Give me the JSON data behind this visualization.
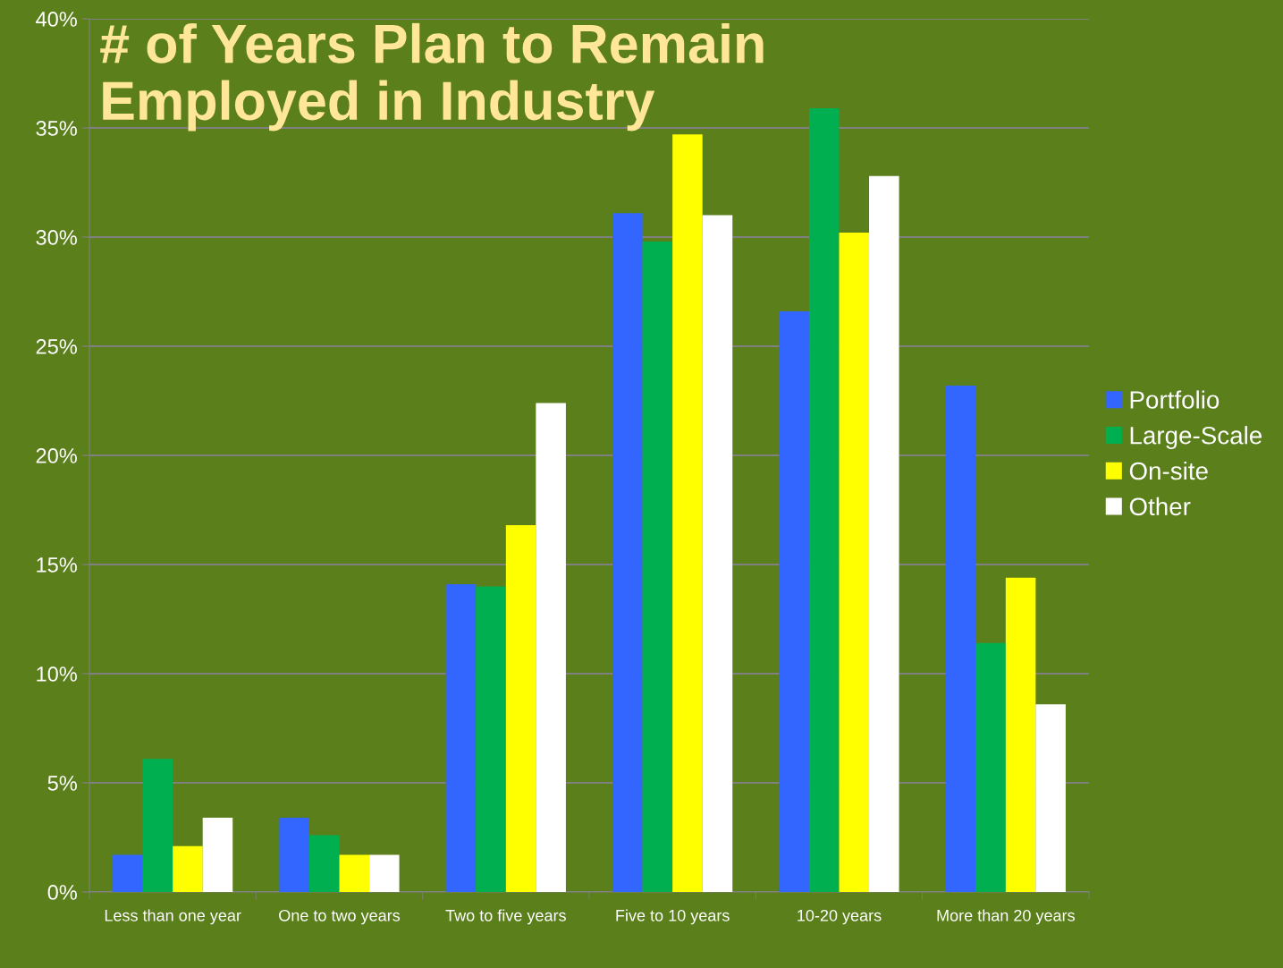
{
  "chart_data": {
    "type": "bar",
    "title": "# of Years Plan to Remain\nEmployed in Industry",
    "categories": [
      "Less than one year",
      "One to two years",
      "Two to five years",
      "Five to 10 years",
      "10-20 years",
      "More than 20 years"
    ],
    "series": [
      {
        "name": "Portfolio",
        "color": "#3366ff",
        "values": [
          1.7,
          3.4,
          14.1,
          31.1,
          26.6,
          23.2
        ]
      },
      {
        "name": "Large-Scale",
        "color": "#00b050",
        "values": [
          6.1,
          2.6,
          14.0,
          29.8,
          35.9,
          11.4
        ]
      },
      {
        "name": "On-site",
        "color": "#ffff00",
        "values": [
          2.1,
          1.7,
          16.8,
          34.7,
          30.2,
          14.4
        ]
      },
      {
        "name": "Other",
        "color": "#ffffff",
        "values": [
          3.4,
          1.7,
          22.4,
          31.0,
          32.8,
          8.6
        ]
      }
    ],
    "ylim": [
      0,
      40
    ],
    "yticks": [
      {
        "value": 0,
        "label": "0%"
      },
      {
        "value": 5,
        "label": "5%"
      },
      {
        "value": 10,
        "label": "10%"
      },
      {
        "value": 15,
        "label": "15%"
      },
      {
        "value": 20,
        "label": "20%"
      },
      {
        "value": 25,
        "label": "25%"
      },
      {
        "value": 30,
        "label": "30%"
      },
      {
        "value": 35,
        "label": "35%"
      },
      {
        "value": 40,
        "label": "40%"
      }
    ],
    "grid": "y",
    "legend": "right"
  }
}
